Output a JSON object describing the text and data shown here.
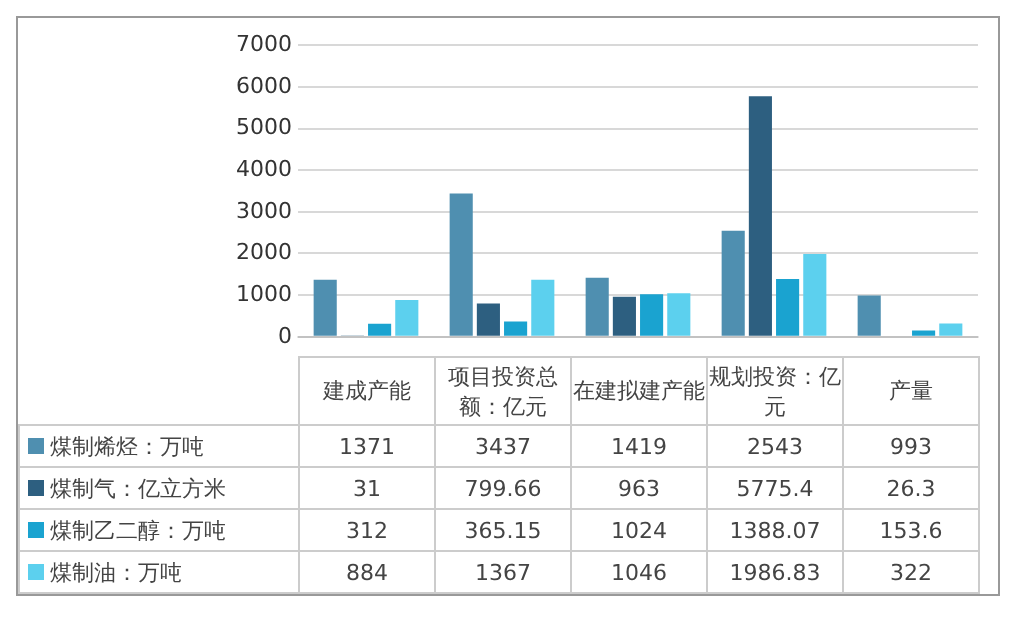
{
  "chart_data": {
    "type": "bar",
    "categories": [
      "建成产能",
      "项目投资总额：亿元",
      "在建拟建产能",
      "规划投资：亿元",
      "产量"
    ],
    "series": [
      {
        "name": "煤制烯烃：万吨",
        "color": "#4f8fb0",
        "values": [
          1371,
          3437,
          1419,
          2543,
          993
        ]
      },
      {
        "name": "煤制气：亿立方米",
        "color": "#2d5f80",
        "values": [
          31,
          799.66,
          963,
          5775.4,
          26.3
        ]
      },
      {
        "name": "煤制乙二醇：万吨",
        "color": "#1aa3d0",
        "values": [
          312,
          365.15,
          1024,
          1388.07,
          153.6
        ]
      },
      {
        "name": "煤制油：万吨",
        "color": "#5cd0ee",
        "values": [
          884,
          1367,
          1046,
          1986.83,
          322
        ]
      }
    ],
    "ylim": [
      0,
      7000
    ],
    "yticks": [
      0,
      1000,
      2000,
      3000,
      4000,
      5000,
      6000,
      7000
    ],
    "grid": "y",
    "legend": "bottom",
    "data_labels": true,
    "tick_labels": "y"
  }
}
